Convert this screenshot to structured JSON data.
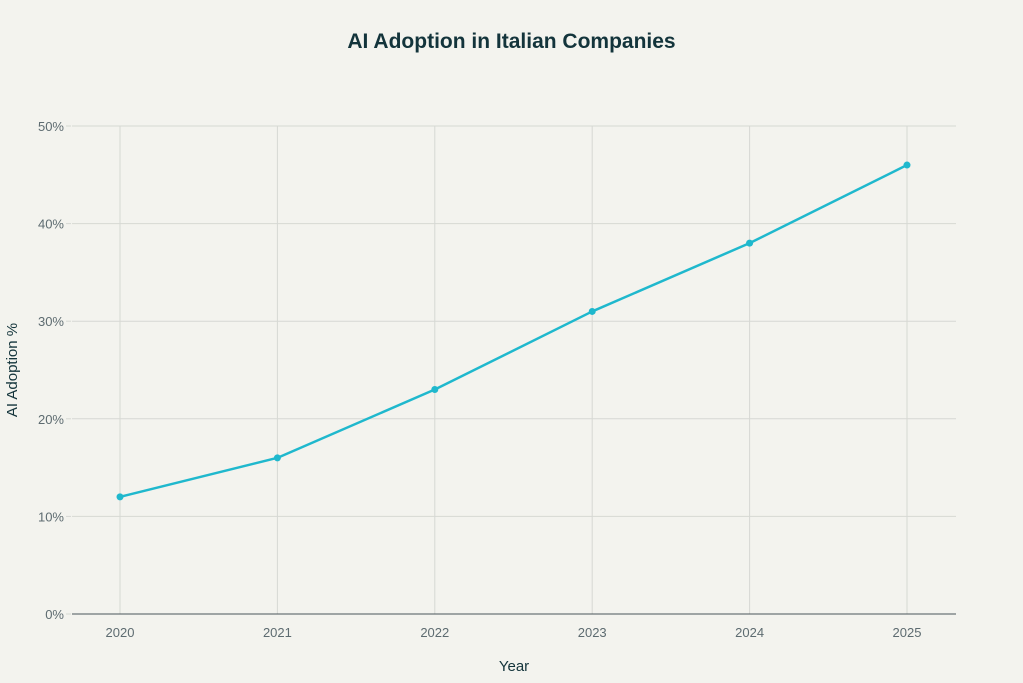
{
  "chart_data": {
    "type": "line",
    "title": "AI Adoption in Italian Companies",
    "xlabel": "Year",
    "ylabel": "AI Adoption %",
    "x": [
      "2020",
      "2021",
      "2022",
      "2023",
      "2024",
      "2025"
    ],
    "series": [
      {
        "name": "AI Adoption %",
        "values": [
          12,
          16,
          23,
          31,
          38,
          46
        ],
        "color": "#1fb8cd"
      }
    ],
    "ylim": [
      0,
      50
    ],
    "yticks": [
      0,
      10,
      20,
      30,
      40,
      50
    ],
    "ytick_labels": [
      "0%",
      "10%",
      "20%",
      "30%",
      "40%",
      "50%"
    ],
    "grid": true,
    "legend": "none"
  }
}
